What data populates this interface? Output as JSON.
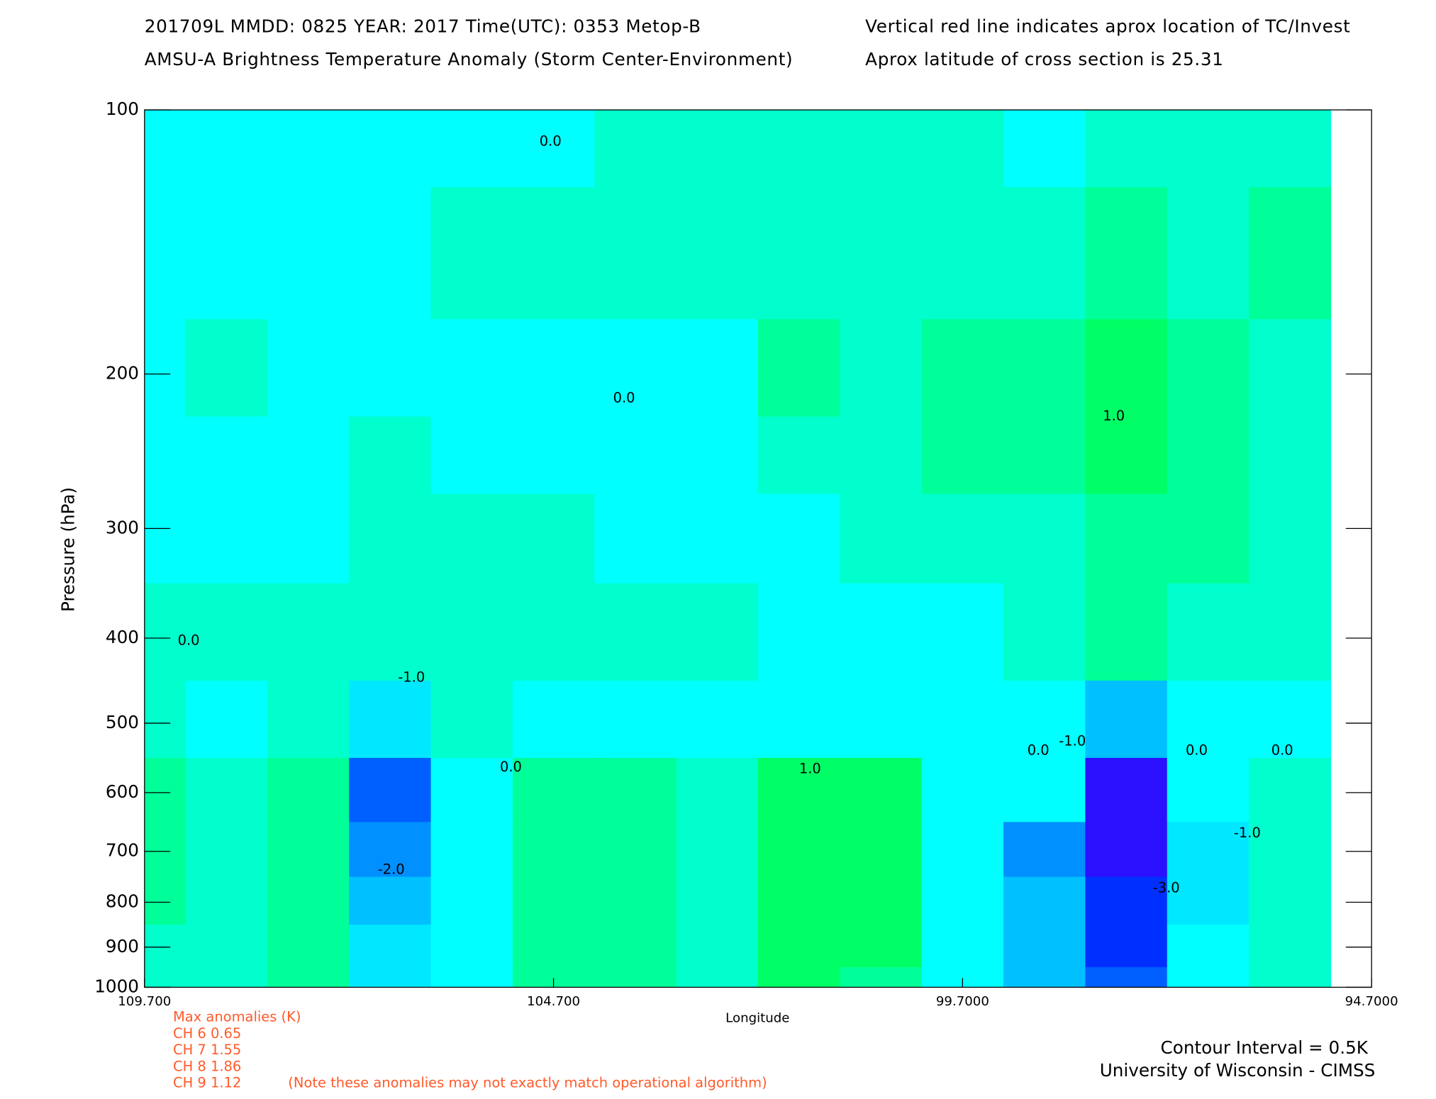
{
  "chart_data": {
    "type": "contour",
    "title": "201709L  MMDD: 0825 YEAR: 2017 Time(UTC): 0353 Metop-B",
    "subtitle": "AMSU-A Brightness Temperature Anomaly (Storm Center-Environment)",
    "note_right": [
      "Vertical red line indicates aprox location of TC/Invest",
      "Aprox latitude of cross section is 25.31"
    ],
    "xlabel": "Longitude",
    "ylabel": "Pressure (hPa)",
    "xlim": [
      109.7,
      94.7
    ],
    "xticks": [
      {
        "value": 109.7,
        "label": "109.700"
      },
      {
        "value": 104.7,
        "label": "104.700"
      },
      {
        "value": 99.7,
        "label": "99.7000"
      },
      {
        "value": 94.7,
        "label": "94.7000"
      }
    ],
    "ylim": [
      100,
      1000
    ],
    "yscale": "log",
    "yticks": [
      100,
      200,
      300,
      400,
      500,
      600,
      700,
      800,
      900,
      1000
    ],
    "x": [
      109.7,
      108.7,
      107.7,
      106.7,
      105.7,
      104.7,
      103.7,
      102.7,
      101.7,
      100.7,
      99.7,
      98.7,
      97.7,
      96.7,
      95.7
    ],
    "y": [
      100,
      150,
      200,
      250,
      300,
      400,
      500,
      600,
      700,
      800,
      900,
      1000
    ],
    "z": [
      [
        -0.2,
        -0.2,
        -0.2,
        -0.2,
        -0.2,
        -0.1,
        0.1,
        0.1,
        0.1,
        0.1,
        0.1,
        -0.1,
        0.3,
        0.3,
        0.3
      ],
      [
        -0.2,
        -0.2,
        -0.2,
        -0.2,
        0.1,
        0.2,
        0.2,
        0.1,
        0.2,
        0.2,
        0.2,
        0.3,
        0.8,
        0.3,
        0.6
      ],
      [
        -0.2,
        0.2,
        -0.2,
        -0.2,
        -0.1,
        -0.1,
        -0.2,
        -0.1,
        0.6,
        0.2,
        0.6,
        0.7,
        1.3,
        0.7,
        0.3
      ],
      [
        -0.2,
        -0.2,
        -0.2,
        0.2,
        -0.2,
        -0.2,
        -0.2,
        -0.2,
        0.2,
        0.3,
        0.6,
        0.6,
        1.1,
        0.6,
        0.3
      ],
      [
        -0.2,
        -0.2,
        -0.2,
        0.2,
        0.1,
        0.2,
        -0.2,
        -0.2,
        -0.1,
        0.2,
        0.2,
        0.3,
        0.7,
        0.5,
        0.3
      ],
      [
        0.2,
        0.1,
        0.2,
        0.3,
        0.2,
        0.3,
        0.3,
        0.2,
        -0.1,
        -0.2,
        -0.2,
        0.2,
        0.6,
        0.2,
        0.2
      ],
      [
        0.2,
        -0.2,
        0.2,
        -0.8,
        0.2,
        -0.1,
        -0.1,
        -0.2,
        -0.1,
        -0.2,
        -0.2,
        -0.4,
        -1.2,
        -0.3,
        -0.2
      ],
      [
        0.6,
        0.2,
        0.6,
        -2.2,
        -0.2,
        0.6,
        0.6,
        0.2,
        1.3,
        1.0,
        -0.2,
        -0.2,
        -3.2,
        -0.2,
        0.3
      ],
      [
        0.6,
        0.2,
        0.6,
        -1.8,
        -0.2,
        0.6,
        0.6,
        0.3,
        1.4,
        1.2,
        -0.2,
        -1.6,
        -3.1,
        -0.8,
        0.3
      ],
      [
        0.6,
        0.2,
        0.6,
        -1.2,
        -0.2,
        0.6,
        0.6,
        0.3,
        1.1,
        1.0,
        -0.2,
        -1.4,
        -2.9,
        -0.8,
        0.2
      ],
      [
        0.3,
        0.2,
        0.6,
        -0.8,
        -0.2,
        0.6,
        0.6,
        0.3,
        1.0,
        1.0,
        -0.2,
        -1.3,
        -2.6,
        -0.5,
        0.2
      ],
      [
        0.3,
        0.2,
        0.5,
        -0.6,
        -0.2,
        0.6,
        0.7,
        0.3,
        1.0,
        0.9,
        -0.2,
        -1.2,
        -2.4,
        -0.4,
        0.2
      ]
    ],
    "contour_levels": [
      -3,
      -2.5,
      -2,
      -1.5,
      -1,
      -0.5,
      0,
      0.5,
      1,
      1.5
    ],
    "colors": [
      "#2a10ff",
      "#0030ff",
      "#0060ff",
      "#0090ff",
      "#00c0ff",
      "#00e8ff",
      "#00ffff",
      "#00ffcc",
      "#00ff99",
      "#00ff66",
      "#00ff33"
    ],
    "contour_labels": [
      "0.0",
      "0.0",
      "1.0",
      "0.0",
      "-1.0",
      "0.0",
      "1.0",
      "-2.0",
      "0.0",
      "-1.0",
      "-3.0",
      "0.0",
      "0.0",
      "-1.0"
    ],
    "annotations_left": [
      "Max anomalies (K)",
      "CH 6  0.65",
      "CH 7  1.55",
      "CH 8  1.86",
      "CH 9  1.12"
    ],
    "annotation_note": "(Note these anomalies may not exactly match operational algorithm)",
    "footer": [
      "Contour Interval = 0.5K",
      "University of Wisconsin - CIMSS"
    ]
  }
}
